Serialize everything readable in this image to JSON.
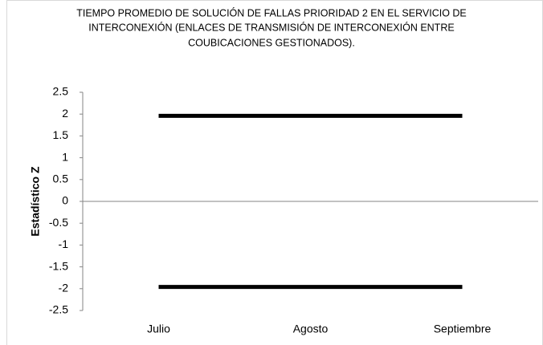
{
  "chart_data": {
    "type": "line",
    "title": [
      "TIEMPO PROMEDIO DE SOLUCIÓN DE FALLAS PRIORIDAD 2 EN EL SERVICIO DE",
      "INTERCONEXIÓN (ENLACES DE TRANSMISIÓN DE INTERCONEXIÓN ENTRE",
      "COUBICACIONES GESTIONADOS)."
    ],
    "y_label": "Estadístico Z",
    "categories": [
      "Julio",
      "Agosto",
      "Septiembre"
    ],
    "series": [
      {
        "color": "#000000",
        "values": [
          1.96,
          1.96,
          1.96
        ]
      },
      {
        "color": "#000000",
        "values": [
          -1.96,
          -1.96,
          -1.96
        ]
      }
    ],
    "ylim": [
      -2.5,
      2.5
    ],
    "yticks": [
      2.5,
      2,
      1.5,
      1,
      0.5,
      0,
      -0.5,
      -1,
      -1.5,
      -2,
      -2.5
    ],
    "grid": false
  }
}
